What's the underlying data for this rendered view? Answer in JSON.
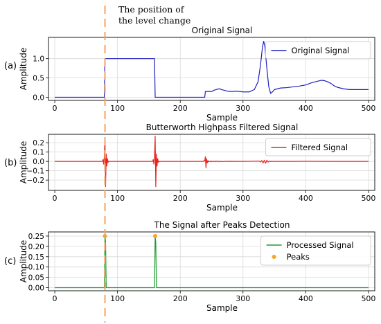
{
  "annotation": {
    "line1": "The position of",
    "line2": "the level change",
    "x": 80,
    "color": "#f4a460"
  },
  "chart_data": [
    {
      "panel_label": "(a)",
      "type": "line",
      "title": "Original Signal",
      "xlabel": "Sample",
      "ylabel": "Amplitude",
      "xlim": [
        -10,
        510
      ],
      "ylim": [
        -0.08,
        1.55
      ],
      "xticks": [
        0,
        100,
        200,
        300,
        400,
        500
      ],
      "yticks": [
        0.0,
        0.5,
        1.0
      ],
      "ytick_labels": [
        "0.0",
        "0.5",
        "1.0"
      ],
      "grid": true,
      "legend_position": "top-right",
      "series": [
        {
          "name": "Original Signal",
          "color": "#1f1fbf",
          "x": [
            0,
            79,
            80,
            159,
            160,
            239,
            240,
            250,
            255,
            262,
            268,
            275,
            282,
            290,
            300,
            310,
            318,
            324,
            328,
            331,
            333,
            335,
            338,
            341,
            344,
            347,
            350,
            355,
            360,
            370,
            380,
            390,
            400,
            410,
            420,
            425,
            430,
            435,
            440,
            445,
            450,
            460,
            470,
            480,
            490,
            500
          ],
          "y": [
            0,
            0,
            1,
            1,
            0,
            0,
            0.15,
            0.15,
            0.19,
            0.22,
            0.19,
            0.16,
            0.15,
            0.16,
            0.14,
            0.14,
            0.2,
            0.4,
            0.85,
            1.3,
            1.45,
            1.3,
            0.75,
            0.28,
            0.1,
            0.14,
            0.2,
            0.22,
            0.24,
            0.25,
            0.27,
            0.29,
            0.32,
            0.38,
            0.42,
            0.44,
            0.43,
            0.4,
            0.36,
            0.3,
            0.26,
            0.22,
            0.2,
            0.2,
            0.2,
            0.2
          ]
        }
      ]
    },
    {
      "panel_label": "(b)",
      "type": "line",
      "title": "Butterworth Highpass Filtered Signal",
      "xlabel": "Sample",
      "ylabel": "Amplitude",
      "xlim": [
        -10,
        510
      ],
      "ylim": [
        -0.31,
        0.29
      ],
      "xticks": [
        0,
        100,
        200,
        300,
        400,
        500
      ],
      "yticks": [
        -0.2,
        -0.1,
        0.0,
        0.1,
        0.2
      ],
      "ytick_labels": [
        "−0.2",
        "−0.1",
        "0.0",
        "0.1",
        "0.2"
      ],
      "grid": true,
      "legend_position": "top-right",
      "series": [
        {
          "name": "Filtered Signal",
          "color": "#e8231e",
          "x": [
            0,
            76,
            77,
            78,
            79,
            80,
            81,
            82,
            83,
            84,
            85,
            86,
            156,
            157,
            158,
            159,
            160,
            161,
            162,
            163,
            164,
            165,
            166,
            237,
            238,
            239,
            240,
            241,
            242,
            243,
            244,
            245,
            246,
            247,
            248,
            249,
            250,
            251,
            252,
            253,
            254,
            255,
            256,
            258,
            260,
            262,
            264,
            266,
            268,
            270,
            280,
            300,
            310,
            320,
            326,
            328,
            330,
            332,
            334,
            336,
            338,
            340,
            342,
            344,
            346,
            348,
            350,
            360,
            380,
            400,
            440,
            480,
            500
          ],
          "y": [
            0,
            0,
            0.02,
            -0.03,
            0.05,
            0.25,
            -0.27,
            0.08,
            -0.05,
            0.03,
            -0.01,
            0,
            0,
            0.02,
            -0.03,
            0.05,
            0.27,
            -0.27,
            0.08,
            -0.05,
            0.03,
            -0.01,
            0,
            0,
            0.01,
            0.005,
            0.05,
            -0.07,
            0.03,
            -0.015,
            0.008,
            -0.005,
            0.003,
            0,
            -0.003,
            0.003,
            -0.002,
            0.002,
            -0.002,
            0.001,
            0,
            0.003,
            -0.003,
            0.004,
            -0.004,
            0.003,
            -0.003,
            0.002,
            -0.002,
            0,
            0.001,
            0,
            0.001,
            0.002,
            0.003,
            -0.006,
            0.01,
            -0.016,
            0.012,
            -0.02,
            0.013,
            -0.008,
            0.004,
            -0.002,
            0.001,
            0,
            0,
            0,
            0,
            0.001,
            0,
            0,
            0
          ]
        }
      ]
    },
    {
      "panel_label": "(c)",
      "type": "line",
      "title": "The Signal after Peaks Detection",
      "xlabel": "Sample",
      "ylabel": "Amplitude",
      "xlim": [
        -10,
        510
      ],
      "ylim": [
        -0.015,
        0.27
      ],
      "xticks": [
        0,
        100,
        200,
        300,
        400,
        500
      ],
      "yticks": [
        0.0,
        0.05,
        0.1,
        0.15,
        0.2,
        0.25
      ],
      "ytick_labels": [
        "0.00",
        "0.05",
        "0.10",
        "0.15",
        "0.20",
        "0.25"
      ],
      "grid": true,
      "legend_position": "top-right",
      "series": [
        {
          "name": "Processed Signal",
          "color": "#1e9b32",
          "x": [
            0,
            79,
            80,
            81,
            82,
            159,
            160,
            161,
            162,
            500
          ],
          "y": [
            0,
            0,
            0.25,
            0.22,
            0,
            0,
            0.25,
            0.22,
            0,
            0
          ]
        }
      ],
      "peaks": {
        "name": "Peaks",
        "color": "#f5a623",
        "x": [
          80,
          160
        ],
        "y": [
          0.25,
          0.25
        ]
      }
    }
  ]
}
